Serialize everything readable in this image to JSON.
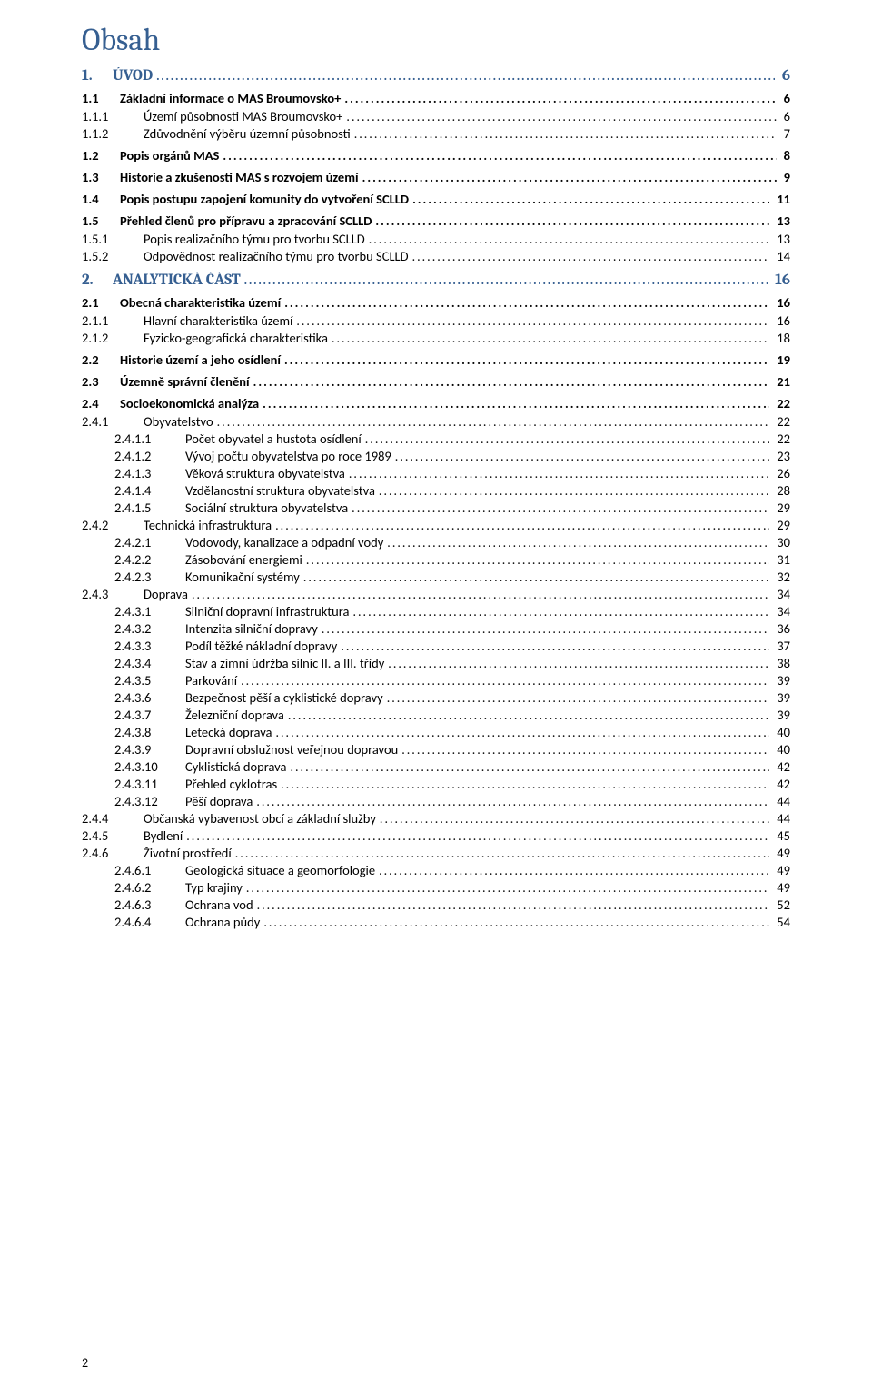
{
  "title": "Obsah",
  "page_number": "2",
  "colors": {
    "heading_blue": "#365f91",
    "text_black": "#000000",
    "background": "#ffffff"
  },
  "typography": {
    "title_family": "Cambria",
    "title_size_pt": 26,
    "body_family": "Calibri",
    "lvl0_size_pt": 13,
    "lvl1_size_pt": 11,
    "lvl2_size_pt": 11,
    "lvl3_size_pt": 11
  },
  "toc": [
    {
      "level": 0,
      "num": "1.",
      "text": "ÚVOD",
      "page": "6"
    },
    {
      "level": 1,
      "num": "1.1",
      "text": "Základní informace o MAS Broumovsko+",
      "page": "6"
    },
    {
      "level": 2,
      "num": "1.1.1",
      "text": "Území působnosti MAS Broumovsko+",
      "page": "6"
    },
    {
      "level": 2,
      "num": "1.1.2",
      "text": "Zdůvodnění výběru územní působnosti",
      "page": "7"
    },
    {
      "level": 1,
      "num": "1.2",
      "text": "Popis orgánů MAS",
      "page": "8"
    },
    {
      "level": 1,
      "num": "1.3",
      "text": "Historie a zkušenosti MAS s rozvojem území",
      "page": "9"
    },
    {
      "level": 1,
      "num": "1.4",
      "text": "Popis postupu zapojení komunity do vytvoření SCLLD",
      "page": "11"
    },
    {
      "level": 1,
      "num": "1.5",
      "text": "Přehled členů pro přípravu a zpracování SCLLD",
      "page": "13"
    },
    {
      "level": 2,
      "num": "1.5.1",
      "text": "Popis realizačního týmu pro tvorbu SCLLD",
      "page": "13"
    },
    {
      "level": 2,
      "num": "1.5.2",
      "text": "Odpovědnost realizačního týmu pro tvorbu SCLLD",
      "page": "14"
    },
    {
      "level": 0,
      "num": "2.",
      "text": "ANALYTICKÁ ČÁST",
      "page": "16"
    },
    {
      "level": 1,
      "num": "2.1",
      "text": "Obecná charakteristika území",
      "page": "16"
    },
    {
      "level": 2,
      "num": "2.1.1",
      "text": "Hlavní charakteristika území",
      "page": "16"
    },
    {
      "level": 2,
      "num": "2.1.2",
      "text": "Fyzicko-geografická charakteristika",
      "page": "18"
    },
    {
      "level": 1,
      "num": "2.2",
      "text": "Historie území a jeho osídlení",
      "page": "19"
    },
    {
      "level": 1,
      "num": "2.3",
      "text": "Územně správní členění",
      "page": "21"
    },
    {
      "level": 1,
      "num": "2.4",
      "text": "Socioekonomická analýza",
      "page": "22"
    },
    {
      "level": 2,
      "num": "2.4.1",
      "text": "Obyvatelstvo",
      "page": "22"
    },
    {
      "level": 3,
      "num": "2.4.1.1",
      "text": "Počet obyvatel a hustota osídlení",
      "page": "22"
    },
    {
      "level": 3,
      "num": "2.4.1.2",
      "text": "Vývoj počtu obyvatelstva po roce 1989",
      "page": "23"
    },
    {
      "level": 3,
      "num": "2.4.1.3",
      "text": "Věková struktura obyvatelstva",
      "page": "26"
    },
    {
      "level": 3,
      "num": "2.4.1.4",
      "text": "Vzdělanostní struktura obyvatelstva",
      "page": "28"
    },
    {
      "level": 3,
      "num": "2.4.1.5",
      "text": "Sociální struktura obyvatelstva",
      "page": "29"
    },
    {
      "level": 2,
      "num": "2.4.2",
      "text": "Technická infrastruktura",
      "page": "29"
    },
    {
      "level": 3,
      "num": "2.4.2.1",
      "text": "Vodovody, kanalizace a odpadní vody",
      "page": "30"
    },
    {
      "level": 3,
      "num": "2.4.2.2",
      "text": "Zásobování energiemi",
      "page": "31"
    },
    {
      "level": 3,
      "num": "2.4.2.3",
      "text": "Komunikační systémy",
      "page": "32"
    },
    {
      "level": 2,
      "num": "2.4.3",
      "text": "Doprava",
      "page": "34"
    },
    {
      "level": 3,
      "num": "2.4.3.1",
      "text": "Silniční dopravní infrastruktura",
      "page": "34"
    },
    {
      "level": 3,
      "num": "2.4.3.2",
      "text": "Intenzita silniční dopravy",
      "page": "36"
    },
    {
      "level": 3,
      "num": "2.4.3.3",
      "text": "Podíl těžké nákladní dopravy",
      "page": "37"
    },
    {
      "level": 3,
      "num": "2.4.3.4",
      "text": "Stav a zimní údržba silnic II. a III. třídy",
      "page": "38"
    },
    {
      "level": 3,
      "num": "2.4.3.5",
      "text": "Parkování",
      "page": "39"
    },
    {
      "level": 3,
      "num": "2.4.3.6",
      "text": "Bezpečnost pěší a cyklistické dopravy",
      "page": "39"
    },
    {
      "level": 3,
      "num": "2.4.3.7",
      "text": "Železniční doprava",
      "page": "39"
    },
    {
      "level": 3,
      "num": "2.4.3.8",
      "text": "Letecká doprava",
      "page": "40"
    },
    {
      "level": 3,
      "num": "2.4.3.9",
      "text": "Dopravní obslužnost veřejnou dopravou",
      "page": "40"
    },
    {
      "level": 3,
      "num": "2.4.3.10",
      "text": "Cyklistická doprava",
      "page": "42"
    },
    {
      "level": 3,
      "num": "2.4.3.11",
      "text": "Přehled cyklotras",
      "page": "42"
    },
    {
      "level": 3,
      "num": "2.4.3.12",
      "text": "Pěší doprava",
      "page": "44"
    },
    {
      "level": 2,
      "num": "2.4.4",
      "text": "Občanská vybavenost obcí a základní služby",
      "page": "44"
    },
    {
      "level": 2,
      "num": "2.4.5",
      "text": "Bydlení",
      "page": "45"
    },
    {
      "level": 2,
      "num": "2.4.6",
      "text": "Životní prostředí",
      "page": "49"
    },
    {
      "level": 3,
      "num": "2.4.6.1",
      "text": "Geologická situace a geomorfologie",
      "page": "49"
    },
    {
      "level": 3,
      "num": "2.4.6.2",
      "text": "Typ krajiny",
      "page": "49"
    },
    {
      "level": 3,
      "num": "2.4.6.3",
      "text": "Ochrana vod",
      "page": "52"
    },
    {
      "level": 3,
      "num": "2.4.6.4",
      "text": "Ochrana půdy",
      "page": "54"
    }
  ]
}
